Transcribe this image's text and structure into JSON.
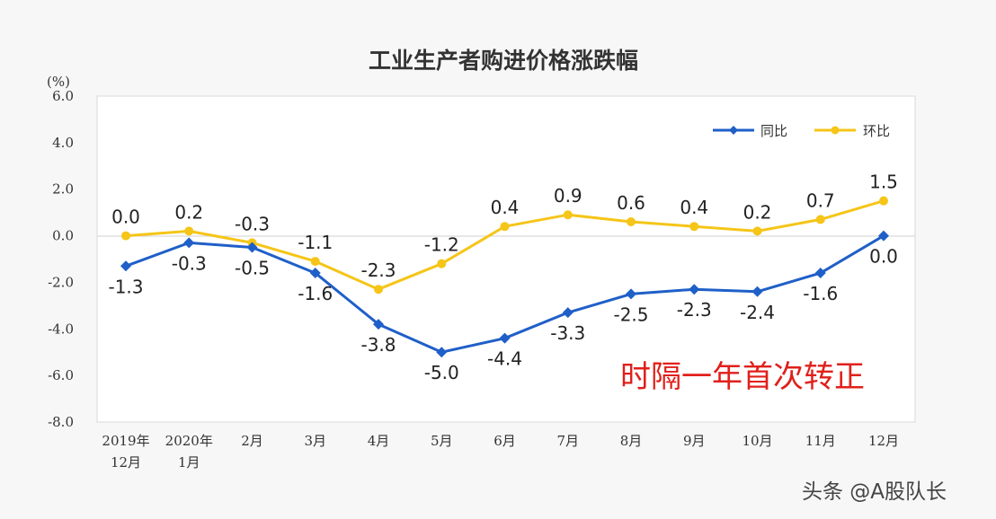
{
  "chart_data": {
    "type": "line",
    "title": "工业生产者购进价格涨跌幅",
    "ylabel": "(%)",
    "ylim": [
      -8,
      6
    ],
    "yticks": [
      "6.0",
      "4.0",
      "2.0",
      "0.0",
      "-2.0",
      "-4.0",
      "-6.0",
      "-8.0"
    ],
    "categories": [
      [
        "2019年",
        "12月"
      ],
      [
        "2020年",
        "1月"
      ],
      [
        "2月"
      ],
      [
        "3月"
      ],
      [
        "4月"
      ],
      [
        "5月"
      ],
      [
        "6月"
      ],
      [
        "7月"
      ],
      [
        "8月"
      ],
      [
        "9月"
      ],
      [
        "10月"
      ],
      [
        "11月"
      ],
      [
        "12月"
      ]
    ],
    "series": [
      {
        "name": "同比",
        "color": "#1f5fc8",
        "values": [
          -1.3,
          -0.3,
          -0.5,
          -1.6,
          -3.8,
          -5.0,
          -4.4,
          -3.3,
          -2.5,
          -2.3,
          -2.4,
          -1.6,
          0.0
        ],
        "labels": [
          "-1.3",
          "-0.3",
          "-0.5",
          "-1.6",
          "-3.8",
          "-5.0",
          "-4.4",
          "-3.3",
          "-2.5",
          "-2.3",
          "-2.4",
          "-1.6",
          "0.0"
        ]
      },
      {
        "name": "环比",
        "color": "#f5c518",
        "values": [
          0.0,
          0.2,
          -0.3,
          -1.1,
          -2.3,
          -1.2,
          0.4,
          0.9,
          0.6,
          0.4,
          0.2,
          0.7,
          1.5
        ],
        "labels": [
          "0.0",
          "0.2",
          "-0.3",
          "-1.1",
          "-2.3",
          "-1.2",
          "0.4",
          "0.9",
          "0.6",
          "0.4",
          "0.2",
          "0.7",
          "1.5"
        ]
      }
    ],
    "legend": "top-right",
    "grid": false
  },
  "annotation": "时隔一年首次转正",
  "watermark": "头条 @A股队长"
}
